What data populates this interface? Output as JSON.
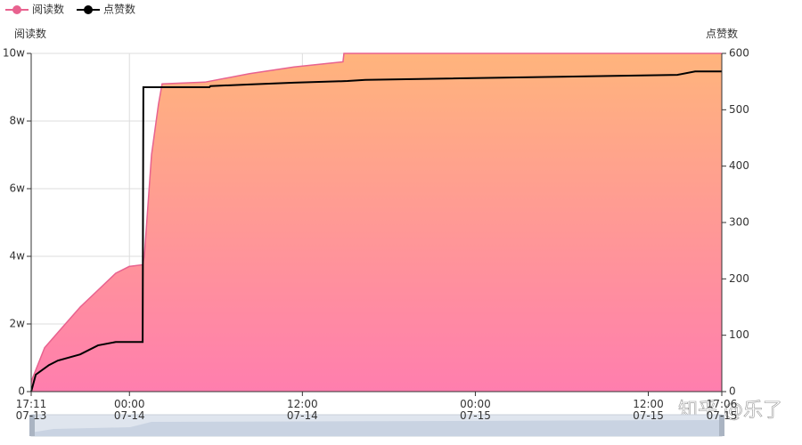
{
  "chart_data": {
    "type": "dual-axis-area-line",
    "legend": "top-left",
    "y_axis_name": "阅读数",
    "y2_axis_name": "点赞数",
    "watermark": "知乎 @乐了",
    "xlim": [
      "07-13 17:11",
      "07-15 17:06"
    ],
    "xticks": [
      {
        "value": "07-13 17:11",
        "label": "17:11\n07-13"
      },
      {
        "value": "07-14 00:00",
        "label": "00:00\n07-14"
      },
      {
        "value": "07-14 12:00",
        "label": "12:00\n07-14"
      },
      {
        "value": "07-15 00:00",
        "label": "00:00\n07-15"
      },
      {
        "value": "07-15 12:00",
        "label": "12:00\n07-15"
      },
      {
        "value": "07-15 17:06",
        "label": "17:06\n07-15"
      }
    ],
    "ylim": [
      0,
      100000
    ],
    "yticks": [
      0,
      {
        "value": 20000,
        "label": "2w"
      },
      {
        "value": 40000,
        "label": "4w"
      },
      {
        "value": 60000,
        "label": "6w"
      },
      {
        "value": 80000,
        "label": "8w"
      },
      {
        "value": 100000,
        "label": "10w"
      }
    ],
    "y2lim": [
      0,
      600
    ],
    "y2ticks": [
      0,
      100,
      200,
      300,
      400,
      500,
      600
    ],
    "grid": true,
    "series": [
      {
        "name": "阅读数",
        "color": "#e8628f",
        "kind": "area",
        "x": [
          "07-13 17:11",
          "07-13 18:07",
          "07-13 19:21",
          "07-13 20:35",
          "07-13 21:49",
          "07-13 23:03",
          "07-13 23:59",
          "07-14 00:55",
          "07-14 01:02",
          "07-14 01:32",
          "07-14 02:01",
          "07-14 02:16",
          "07-14 05:14",
          "07-14 08:20",
          "07-14 11:25",
          "07-14 14:49",
          "07-14 14:53",
          "07-15 17:06"
        ],
        "values": [
          3000,
          13000,
          19000,
          25000,
          30000,
          35000,
          37000,
          37500,
          40000,
          70000,
          85000,
          91000,
          91500,
          94000,
          96000,
          97500,
          100000,
          100000
        ]
      },
      {
        "name": "点赞数",
        "color": "#000000",
        "kind": "line",
        "axis": "y2",
        "x": [
          "07-13 17:11",
          "07-13 17:30",
          "07-13 18:25",
          "07-13 19:02",
          "07-13 20:35",
          "07-13 21:49",
          "07-13 23:03",
          "07-14 00:55",
          "07-14 00:58",
          "07-14 05:33",
          "07-14 05:37",
          "07-14 08:20",
          "07-14 11:25",
          "07-14 15:08",
          "07-14 16:22",
          "07-15 14:01",
          "07-15 15:15",
          "07-15 17:06"
        ],
        "values": [
          0,
          30,
          47,
          55,
          66,
          82,
          88,
          88,
          540,
          540,
          542,
          545,
          548,
          551,
          553,
          562,
          568,
          568
        ]
      }
    ]
  }
}
